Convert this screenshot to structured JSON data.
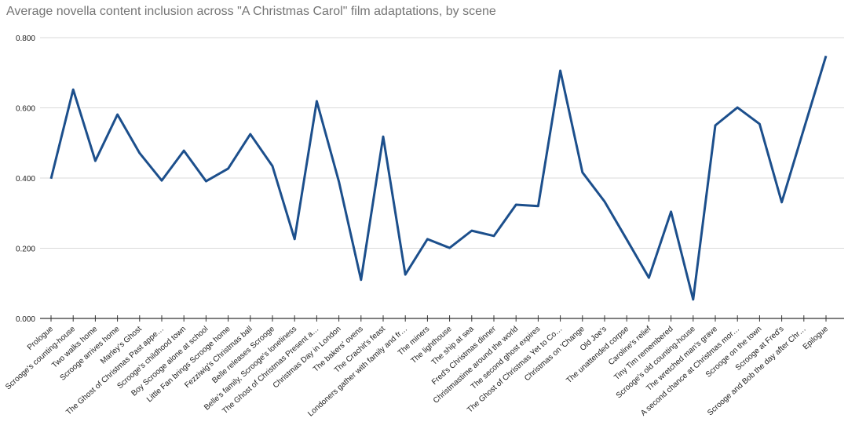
{
  "chart_data": {
    "type": "line",
    "title": "Average novella content inclusion across \"A Christmas Carol\" film adaptations, by scene",
    "xlabel": "",
    "ylabel": "",
    "ylim": [
      0,
      0.8
    ],
    "yticks": [
      "0.000",
      "0.200",
      "0.400",
      "0.600",
      "0.800"
    ],
    "grid": true,
    "legend": "none",
    "line_color": "#1c4f8c",
    "categories": [
      "Prologue",
      "Scrooge's counting-house",
      "Two walks home",
      "Scrooge arrives home",
      "Marley's Ghost",
      "The Ghost of Christmas Past appe…",
      "Scrooge's childhood town",
      "Boy Scrooge alone at school",
      "Little Fan brings Scrooge home",
      "Fezziwig's Christmas ball",
      "Belle releases Scrooge",
      "Belle's family, Scrooge's loneliness",
      "The Ghost of Christmas Present a…",
      "Christmas Day in London",
      "The bakers' ovens",
      "The Crachit's feast",
      "Londoners gather with family and fr…",
      "The miners",
      "The lighthouse",
      "The ship at sea",
      "Fred's Christmas dinner",
      "Christmastime around the world",
      "The second ghost expires",
      "The Ghost of Christmas Yet to Co…",
      "Christmas on 'Change",
      "Old Joe's",
      "The unattended corpse",
      "Caroline's relief",
      "Tiny Tim remembered",
      "Scrooge's old counting-house",
      "The wretched man's grave",
      "A second chance at Christmas mor…",
      "Scrooge on the town",
      "Scrooge at Fred's",
      "Scrooge and Bob the day after Chr…",
      "Epilogue"
    ],
    "values": [
      0.398,
      0.652,
      0.449,
      0.581,
      0.471,
      0.393,
      0.478,
      0.391,
      0.427,
      0.525,
      0.434,
      0.226,
      0.619,
      0.39,
      0.11,
      0.518,
      0.125,
      0.226,
      0.201,
      0.25,
      0.235,
      0.324,
      0.32,
      0.706,
      0.416,
      0.333,
      0.225,
      0.116,
      0.304,
      0.054,
      0.55,
      0.601,
      0.554,
      0.331,
      0.54,
      0.748
    ]
  }
}
